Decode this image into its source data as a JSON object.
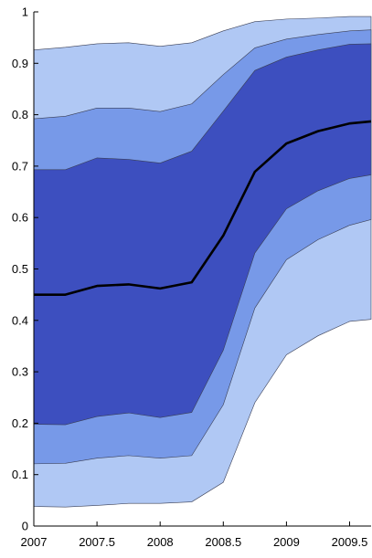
{
  "chart_data": {
    "type": "area",
    "title": "",
    "xlabel": "",
    "ylabel": "",
    "xlim": [
      2007,
      2009.67
    ],
    "ylim": [
      0,
      1
    ],
    "x_ticks": [
      2007,
      2007.5,
      2008,
      2008.5,
      2009,
      2009.5
    ],
    "x_tick_labels": [
      "2007",
      "2007.5",
      "2008",
      "2008.5",
      "2009",
      "2009.5"
    ],
    "y_ticks": [
      0,
      0.1,
      0.2,
      0.3,
      0.4,
      0.5,
      0.6,
      0.7,
      0.8,
      0.9,
      1
    ],
    "y_tick_labels": [
      "0",
      "0.1",
      "0.2",
      "0.3",
      "0.4",
      "0.5",
      "0.6",
      "0.7",
      "0.8",
      "0.9",
      "1"
    ],
    "grid": false,
    "x": [
      2007,
      2007.25,
      2007.5,
      2007.75,
      2008,
      2008.25,
      2008.5,
      2008.75,
      2009,
      2009.25,
      2009.5,
      2009.67
    ],
    "bands": [
      {
        "color": "#b0c8f4",
        "lower": [
          0.038,
          0.037,
          0.04,
          0.044,
          0.044,
          0.047,
          0.085,
          0.24,
          0.333,
          0.37,
          0.398,
          0.402
        ],
        "upper": [
          0.926,
          0.931,
          0.938,
          0.94,
          0.933,
          0.94,
          0.963,
          0.981,
          0.986,
          0.988,
          0.991,
          0.991
        ]
      },
      {
        "color": "#7799e8",
        "lower": [
          0.121,
          0.122,
          0.132,
          0.137,
          0.132,
          0.137,
          0.236,
          0.424,
          0.518,
          0.557,
          0.585,
          0.596
        ],
        "upper": [
          0.792,
          0.797,
          0.813,
          0.813,
          0.806,
          0.821,
          0.878,
          0.93,
          0.947,
          0.956,
          0.963,
          0.965
        ]
      },
      {
        "color": "#3d4fbf",
        "lower": [
          0.198,
          0.197,
          0.213,
          0.22,
          0.211,
          0.221,
          0.342,
          0.531,
          0.617,
          0.652,
          0.676,
          0.683
        ],
        "upper": [
          0.693,
          0.693,
          0.716,
          0.713,
          0.706,
          0.729,
          0.807,
          0.886,
          0.912,
          0.926,
          0.937,
          0.938
        ]
      }
    ],
    "series": [
      {
        "color": "#000000",
        "values": [
          0.45,
          0.45,
          0.467,
          0.47,
          0.462,
          0.474,
          0.565,
          0.689,
          0.744,
          0.768,
          0.783,
          0.787
        ]
      }
    ]
  }
}
